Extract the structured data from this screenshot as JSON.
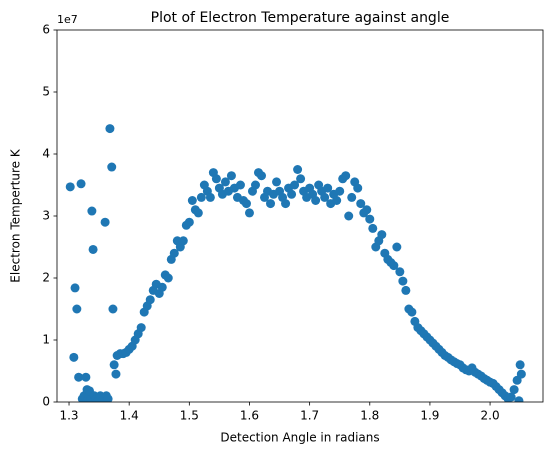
{
  "chart_data": {
    "type": "scatter",
    "title": "Plot of Electron Temperature against angle",
    "x_label": "Detection Angle in radians",
    "y_label": "Electron Temperture K",
    "y_offset_label": "1e7",
    "color": "#1f77b4",
    "xlim": [
      1.28,
      2.088
    ],
    "ylim": [
      0,
      6
    ],
    "xticks": [
      1.3,
      1.4,
      1.5,
      1.6,
      1.7,
      1.8,
      1.9,
      {
        "value": 2,
        "label": "2.0"
      }
    ],
    "yticks": [
      0,
      1,
      2,
      3,
      4,
      5,
      6
    ],
    "x": [
      1.302,
      1.308,
      1.31,
      1.313,
      1.316,
      1.32,
      1.322,
      1.325,
      1.328,
      1.33,
      1.332,
      1.334,
      1.336,
      1.338,
      1.34,
      1.342,
      1.345,
      1.348,
      1.352,
      1.356,
      1.36,
      1.362,
      1.365,
      1.368,
      1.371,
      1.373,
      1.375,
      1.378,
      1.38,
      1.385,
      1.39,
      1.395,
      1.4,
      1.405,
      1.41,
      1.415,
      1.42,
      1.425,
      1.43,
      1.435,
      1.44,
      1.445,
      1.45,
      1.455,
      1.46,
      1.465,
      1.47,
      1.475,
      1.48,
      1.485,
      1.49,
      1.495,
      1.5,
      1.505,
      1.51,
      1.515,
      1.52,
      1.525,
      1.53,
      1.535,
      1.54,
      1.545,
      1.55,
      1.555,
      1.56,
      1.565,
      1.57,
      1.575,
      1.58,
      1.585,
      1.59,
      1.595,
      1.6,
      1.605,
      1.61,
      1.615,
      1.62,
      1.625,
      1.63,
      1.635,
      1.64,
      1.645,
      1.65,
      1.655,
      1.66,
      1.665,
      1.67,
      1.675,
      1.68,
      1.685,
      1.69,
      1.695,
      1.7,
      1.705,
      1.71,
      1.715,
      1.72,
      1.725,
      1.73,
      1.735,
      1.74,
      1.745,
      1.75,
      1.755,
      1.76,
      1.765,
      1.77,
      1.775,
      1.78,
      1.785,
      1.79,
      1.795,
      1.8,
      1.805,
      1.81,
      1.815,
      1.82,
      1.825,
      1.83,
      1.835,
      1.84,
      1.845,
      1.85,
      1.855,
      1.86,
      1.865,
      1.87,
      1.875,
      1.88,
      1.885,
      1.89,
      1.895,
      1.9,
      1.905,
      1.91,
      1.915,
      1.92,
      1.925,
      1.93,
      1.935,
      1.94,
      1.945,
      1.95,
      1.955,
      1.96,
      1.965,
      1.97,
      1.975,
      1.98,
      1.985,
      1.99,
      1.995,
      2.0,
      2.005,
      2.01,
      2.015,
      2.02,
      2.025,
      2.03,
      2.035,
      2.04,
      2.045,
      2.048,
      2.05,
      2.052
    ],
    "values": [
      3.47,
      0.72,
      1.84,
      1.5,
      0.4,
      3.52,
      0.05,
      0.1,
      0.4,
      0.2,
      0.05,
      0.18,
      0.05,
      3.08,
      2.46,
      0.1,
      0.05,
      0.02,
      0.1,
      0.02,
      2.9,
      0.1,
      0.05,
      4.41,
      3.79,
      1.5,
      0.6,
      0.45,
      0.75,
      0.78,
      0.78,
      0.8,
      0.85,
      0.9,
      1.0,
      1.1,
      1.2,
      1.45,
      1.55,
      1.65,
      1.8,
      1.9,
      1.75,
      1.85,
      2.05,
      2.0,
      2.3,
      2.4,
      2.6,
      2.5,
      2.6,
      2.85,
      2.9,
      3.25,
      3.1,
      3.05,
      3.3,
      3.5,
      3.4,
      3.3,
      3.7,
      3.6,
      3.45,
      3.35,
      3.55,
      3.4,
      3.65,
      3.45,
      3.3,
      3.5,
      3.25,
      3.2,
      3.05,
      3.4,
      3.5,
      3.7,
      3.65,
      3.3,
      3.4,
      3.2,
      3.35,
      3.55,
      3.4,
      3.3,
      3.2,
      3.45,
      3.35,
      3.5,
      3.75,
      3.6,
      3.4,
      3.3,
      3.45,
      3.35,
      3.25,
      3.5,
      3.4,
      3.3,
      3.45,
      3.2,
      3.35,
      3.25,
      3.4,
      3.6,
      3.65,
      3.0,
      3.3,
      3.55,
      3.45,
      3.2,
      3.05,
      3.1,
      2.95,
      2.8,
      2.5,
      2.6,
      2.7,
      2.4,
      2.3,
      2.25,
      2.2,
      2.5,
      2.1,
      1.95,
      1.8,
      1.5,
      1.45,
      1.3,
      1.2,
      1.15,
      1.1,
      1.05,
      1.0,
      0.95,
      0.9,
      0.85,
      0.8,
      0.75,
      0.72,
      0.68,
      0.65,
      0.62,
      0.6,
      0.55,
      0.52,
      0.5,
      0.55,
      0.48,
      0.45,
      0.42,
      0.38,
      0.35,
      0.32,
      0.3,
      0.25,
      0.2,
      0.15,
      0.1,
      0.05,
      0.08,
      0.2,
      0.35,
      0.02,
      0.6,
      0.45
    ]
  }
}
